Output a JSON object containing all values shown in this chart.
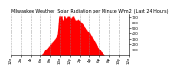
{
  "title": "Milwaukee Weather  Solar Radiation per Minute W/m2  (Last 24 Hours)",
  "bar_color": "#ff0000",
  "background_color": "#ffffff",
  "plot_bg_color": "#ffffff",
  "grid_color": "#888888",
  "ylim": [
    0,
    750
  ],
  "yticks": [
    100,
    200,
    300,
    400,
    500,
    600,
    700
  ],
  "num_points": 1440,
  "title_fontsize": 3.5,
  "tick_fontsize": 3.0,
  "ylabel_fontsize": 3.0
}
